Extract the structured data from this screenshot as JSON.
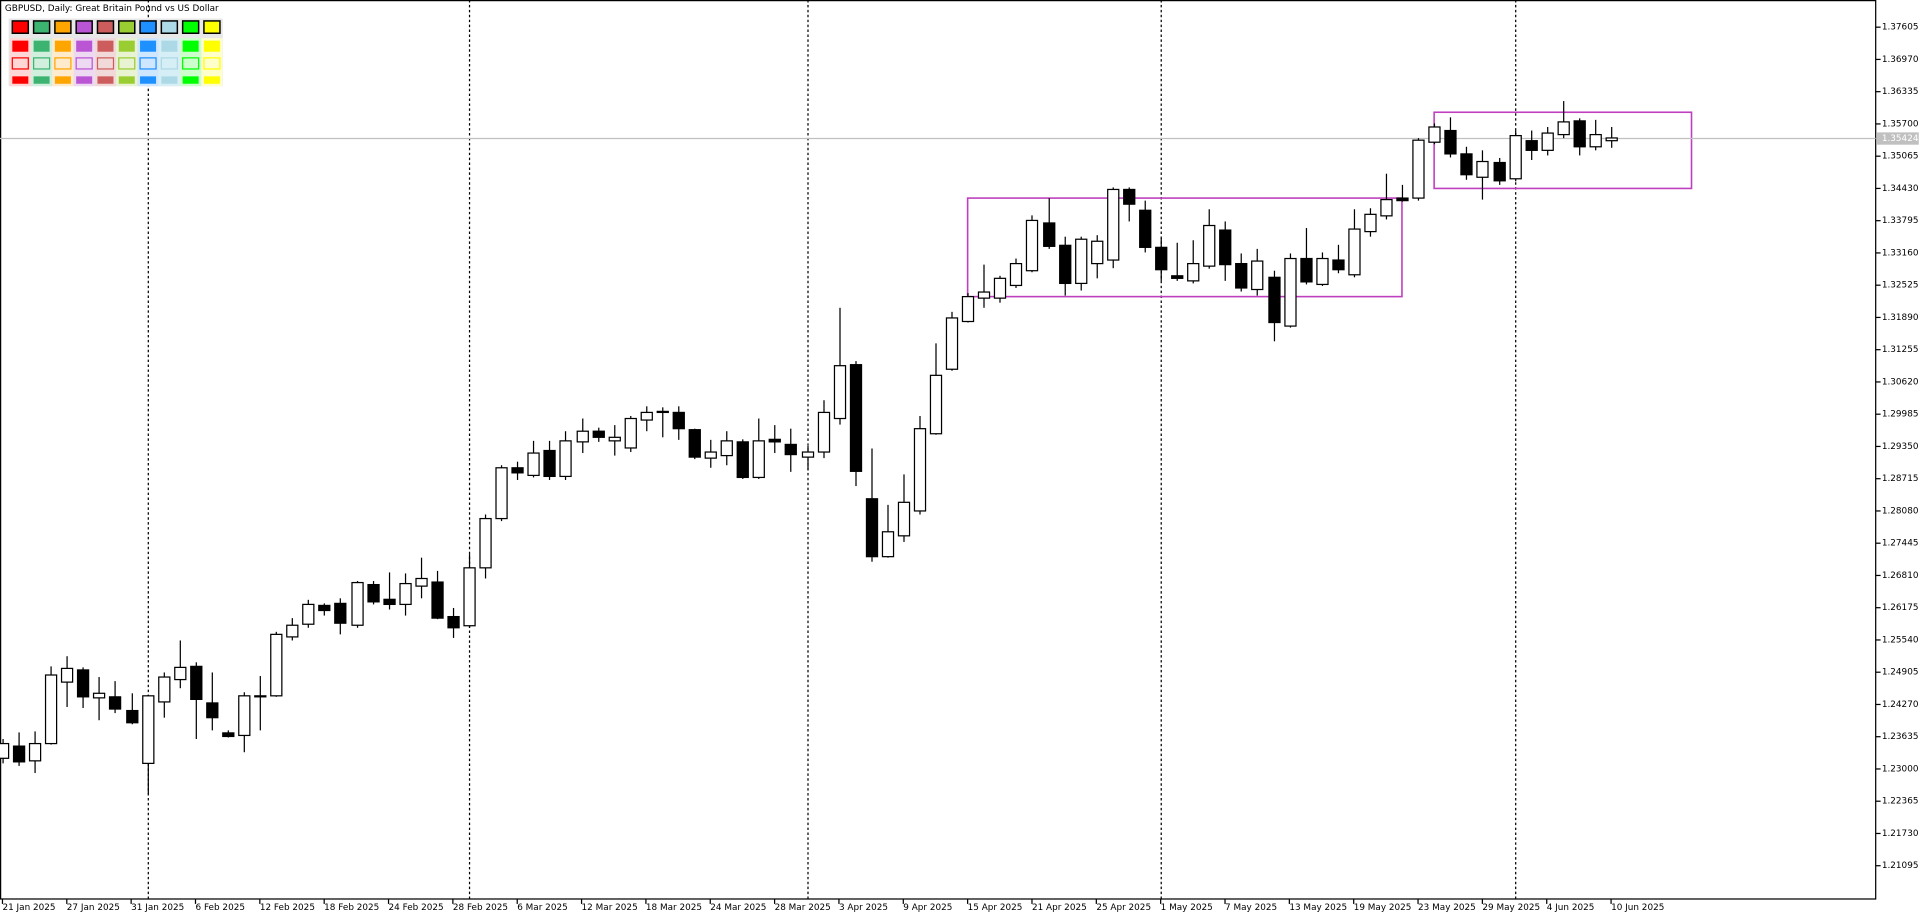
{
  "chart_data": {
    "type": "candlestick",
    "title": "GBPUSD, Daily:  Great Britain Pound vs US Dollar",
    "categories": [
      "21 Jan 2025",
      null,
      null,
      null,
      "27 Jan 2025",
      null,
      null,
      null,
      "31 Jan 2025",
      null,
      null,
      null,
      "6 Feb 2025",
      null,
      null,
      null,
      "12 Feb 2025",
      null,
      null,
      null,
      "18 Feb 2025",
      null,
      null,
      null,
      "24 Feb 2025",
      null,
      null,
      null,
      "28 Feb 2025",
      null,
      null,
      null,
      "6 Mar 2025",
      null,
      null,
      null,
      "12 Mar 2025",
      null,
      null,
      null,
      "18 Mar 2025",
      null,
      null,
      null,
      "24 Mar 2025",
      null,
      null,
      null,
      "28 Mar 2025",
      null,
      null,
      null,
      "3 Apr 2025",
      null,
      null,
      null,
      "9 Apr 2025",
      null,
      null,
      null,
      "15 Apr 2025",
      null,
      null,
      null,
      "21 Apr 2025",
      null,
      null,
      null,
      "25 Apr 2025",
      null,
      null,
      null,
      "1 May 2025",
      null,
      null,
      null,
      "7 May 2025",
      null,
      null,
      null,
      "13 May 2025",
      null,
      null,
      null,
      "19 May 2025",
      null,
      null,
      null,
      "23 May 2025",
      null,
      null,
      null,
      "29 May 2025",
      null,
      null,
      null,
      "4 Jun 2025",
      null,
      null,
      null,
      "10 Jun 2025"
    ],
    "open": [
      1.2321,
      1.2345,
      1.2316,
      1.235,
      1.2471,
      1.2495,
      1.244,
      1.2442,
      1.2415,
      1.2311,
      1.2432,
      1.2476,
      1.2502,
      1.243,
      1.2371,
      1.2366,
      1.2444,
      1.2444,
      1.256,
      1.2585,
      1.2622,
      1.2626,
      1.2583,
      1.2663,
      1.2634,
      1.2624,
      1.266,
      1.2668,
      1.26,
      1.2582,
      1.2696,
      1.2793,
      1.2893,
      1.2878,
      1.2927,
      1.2876,
      1.2944,
      1.2965,
      1.2946,
      1.2932,
      1.2987,
      1.3002,
      1.3002,
      1.2968,
      1.2912,
      1.2917,
      1.2944,
      1.2874,
      1.2949,
      1.2939,
      1.2914,
      1.2924,
      1.299,
      1.3096,
      1.2832,
      1.2718,
      1.2759,
      1.2808,
      1.296,
      1.3087,
      1.3181,
      1.3227,
      1.3227,
      1.3252,
      1.3281,
      1.3375,
      1.3331,
      1.3256,
      1.3295,
      1.3302,
      1.3441,
      1.34,
      1.3327,
      1.3271,
      1.3261,
      1.329,
      1.3361,
      1.3295,
      1.3244,
      1.3268,
      1.3172,
      1.3305,
      1.3254,
      1.3302,
      1.3273,
      1.3358,
      1.3389,
      1.3424,
      1.3424,
      1.3534,
      1.3557,
      1.3511,
      1.3465,
      1.3494,
      1.3462,
      1.3537,
      1.3518,
      1.3549,
      1.3576,
      1.3525,
      1.3537
    ],
    "high": [
      1.2359,
      1.2372,
      1.2374,
      1.2502,
      1.2522,
      1.25,
      1.2481,
      1.2473,
      1.2449,
      1.2446,
      1.249,
      1.2553,
      1.251,
      1.249,
      1.2376,
      1.2451,
      1.2483,
      1.257,
      1.2597,
      1.2633,
      1.2626,
      1.2636,
      1.267,
      1.267,
      1.2687,
      1.2685,
      1.2716,
      1.269,
      1.2617,
      1.2723,
      1.2801,
      1.2898,
      1.2905,
      1.2946,
      1.2946,
      1.2965,
      1.299,
      1.2972,
      1.2977,
      1.2995,
      1.3014,
      1.3012,
      1.3014,
      1.297,
      1.2948,
      1.2965,
      1.2949,
      1.299,
      1.2977,
      1.297,
      1.2936,
      1.3026,
      1.3208,
      1.3103,
      1.2931,
      1.282,
      1.288,
      1.2995,
      1.3138,
      1.32,
      1.3237,
      1.3293,
      1.3271,
      1.3305,
      1.339,
      1.3424,
      1.3348,
      1.3348,
      1.3351,
      1.3445,
      1.3445,
      1.3419,
      1.3346,
      1.3336,
      1.3341,
      1.3402,
      1.3378,
      1.3315,
      1.3324,
      1.3281,
      1.3315,
      1.3365,
      1.3317,
      1.3332,
      1.3402,
      1.3404,
      1.3472,
      1.345,
      1.3542,
      1.3571,
      1.3583,
      1.3525,
      1.3518,
      1.3503,
      1.3557,
      1.3557,
      1.3564,
      1.3615,
      1.3581,
      1.3578,
      1.3564
    ],
    "low": [
      1.2311,
      1.2306,
      1.2292,
      1.2348,
      1.2422,
      1.242,
      1.2396,
      1.241,
      1.2388,
      1.225,
      1.2401,
      1.2459,
      1.2359,
      1.2376,
      1.2362,
      1.2333,
      1.2376,
      1.2442,
      1.2553,
      1.2578,
      1.2602,
      1.2565,
      1.2578,
      1.2624,
      1.2614,
      1.2602,
      1.2636,
      1.2595,
      1.2558,
      1.2578,
      1.2675,
      1.2788,
      1.2869,
      1.2874,
      1.2869,
      1.2869,
      1.2922,
      1.2944,
      1.2917,
      1.2924,
      1.2965,
      1.2953,
      1.2948,
      1.291,
      1.2893,
      1.2898,
      1.2871,
      1.2871,
      1.2922,
      1.2885,
      1.2888,
      1.2912,
      1.2978,
      1.2857,
      1.2708,
      1.2716,
      1.2747,
      1.2801,
      1.2958,
      1.3084,
      1.3179,
      1.3208,
      1.3218,
      1.3247,
      1.3278,
      1.3324,
      1.3232,
      1.3242,
      1.3266,
      1.3286,
      1.3378,
      1.3317,
      1.3261,
      1.3261,
      1.3256,
      1.3285,
      1.3261,
      1.324,
      1.3232,
      1.3142,
      1.3169,
      1.3254,
      1.3251,
      1.3276,
      1.3268,
      1.3348,
      1.3382,
      1.3417,
      1.3419,
      1.353,
      1.3504,
      1.346,
      1.3421,
      1.345,
      1.3457,
      1.3499,
      1.3508,
      1.3542,
      1.3508,
      1.3518,
      1.3523
    ],
    "close": [
      1.235,
      1.2314,
      1.235,
      1.2485,
      1.2498,
      1.2442,
      1.2449,
      1.2418,
      1.2391,
      1.2444,
      1.2481,
      1.25,
      1.2437,
      1.2401,
      1.2364,
      1.2444,
      1.2442,
      1.2565,
      1.2583,
      1.2624,
      1.2612,
      1.2587,
      1.2667,
      1.2629,
      1.2624,
      1.2665,
      1.2675,
      1.2597,
      1.2578,
      1.2696,
      1.2793,
      1.2893,
      1.2883,
      1.2922,
      1.2876,
      1.2946,
      1.2965,
      1.2953,
      1.2953,
      1.299,
      1.3002,
      1.3004,
      1.297,
      1.2914,
      1.2924,
      1.2946,
      1.2874,
      1.2946,
      1.2944,
      1.2919,
      1.2924,
      1.3002,
      1.3094,
      1.2886,
      1.2718,
      1.2767,
      1.2825,
      1.297,
      1.3075,
      1.3188,
      1.323,
      1.3239,
      1.3266,
      1.3295,
      1.338,
      1.3329,
      1.3256,
      1.3343,
      1.3339,
      1.3441,
      1.3412,
      1.3327,
      1.3283,
      1.3266,
      1.3295,
      1.337,
      1.3293,
      1.3247,
      1.33,
      1.3179,
      1.3305,
      1.3259,
      1.3305,
      1.3283,
      1.3363,
      1.3392,
      1.3421,
      1.3419,
      1.3538,
      1.3564,
      1.3511,
      1.347,
      1.3496,
      1.3458,
      1.3547,
      1.3518,
      1.3552,
      1.3574,
      1.3525,
      1.3549,
      1.35424
    ],
    "bid": 1.35424,
    "ylim": [
      1.2044,
      1.3814
    ],
    "yticks": [
      1.37605,
      {
        "value": 1.3697,
        "label": "1.36970"
      },
      1.36335,
      {
        "value": 1.357,
        "label": "1.35700"
      },
      1.35065,
      {
        "value": 1.3443,
        "label": "1.34430"
      },
      1.33795,
      {
        "value": 1.3316,
        "label": "1.33160"
      },
      1.32525,
      {
        "value": 1.3189,
        "label": "1.31890"
      },
      1.31255,
      {
        "value": 1.3062,
        "label": "1.30620"
      },
      1.29985,
      {
        "value": 1.2935,
        "label": "1.29350"
      },
      1.28715,
      {
        "value": 1.2808,
        "label": "1.28080"
      },
      1.27445,
      {
        "value": 1.2681,
        "label": "1.26810"
      },
      1.26175,
      {
        "value": 1.2554,
        "label": "1.25540"
      },
      1.24905,
      {
        "value": 1.2427,
        "label": "1.24270"
      },
      1.23635,
      {
        "value": 1.23,
        "label": "1.23000"
      },
      1.22365,
      {
        "value": 1.2173,
        "label": "1.21730"
      },
      1.21095
    ],
    "rectangles": [
      {
        "low": 1.323,
        "high": 1.3424,
        "start": "15 Apr 2025",
        "end": "22 May 2025"
      },
      {
        "low": 1.3443,
        "high": 1.3593,
        "start": "26 May 2025",
        "end": "17 Jun 2025"
      }
    ],
    "up_color": "#ffffff",
    "down_color": "#000000",
    "rect_color": "#bf40bf",
    "bid_color": "#c0c0c0",
    "period_separators": true,
    "grid": false
  }
}
